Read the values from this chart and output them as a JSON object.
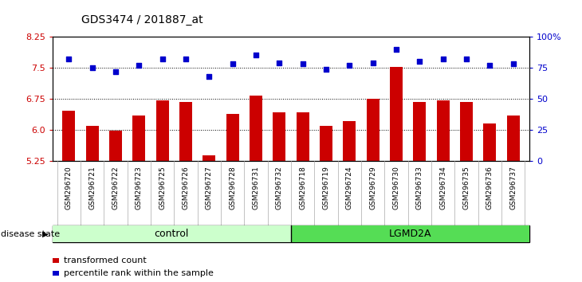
{
  "title": "GDS3474 / 201887_at",
  "samples": [
    "GSM296720",
    "GSM296721",
    "GSM296722",
    "GSM296723",
    "GSM296725",
    "GSM296726",
    "GSM296727",
    "GSM296728",
    "GSM296731",
    "GSM296732",
    "GSM296718",
    "GSM296719",
    "GSM296724",
    "GSM296729",
    "GSM296730",
    "GSM296733",
    "GSM296734",
    "GSM296735",
    "GSM296736",
    "GSM296737"
  ],
  "bar_values": [
    6.45,
    6.1,
    5.97,
    6.35,
    6.7,
    6.68,
    5.38,
    6.38,
    6.82,
    6.42,
    6.42,
    6.1,
    6.2,
    6.75,
    7.52,
    6.68,
    6.7,
    6.68,
    6.15,
    6.35
  ],
  "dot_values": [
    82,
    75,
    72,
    77,
    82,
    82,
    68,
    78,
    85,
    79,
    78,
    74,
    77,
    79,
    90,
    80,
    82,
    82,
    77,
    78
  ],
  "control_color": "#ccffcc",
  "lgmd2a_color": "#55dd55",
  "bar_color": "#cc0000",
  "dot_color": "#0000cc",
  "gray_bg": "#d0d0d0",
  "ylim_left": [
    5.25,
    8.25
  ],
  "ylim_right": [
    0,
    100
  ],
  "yticks_left": [
    5.25,
    6.0,
    6.75,
    7.5,
    8.25
  ],
  "yticks_right": [
    0,
    25,
    50,
    75,
    100
  ],
  "ytick_labels_right": [
    "0",
    "25",
    "50",
    "75",
    "100%"
  ],
  "hlines": [
    6.0,
    6.75,
    7.5
  ],
  "legend_bar": "transformed count",
  "legend_dot": "percentile rank within the sample",
  "disease_state_label": "disease state",
  "control_label": "control",
  "lgmd2a_label": "LGMD2A",
  "n_control": 10,
  "n_lgmd2a": 10,
  "bar_width": 0.55
}
